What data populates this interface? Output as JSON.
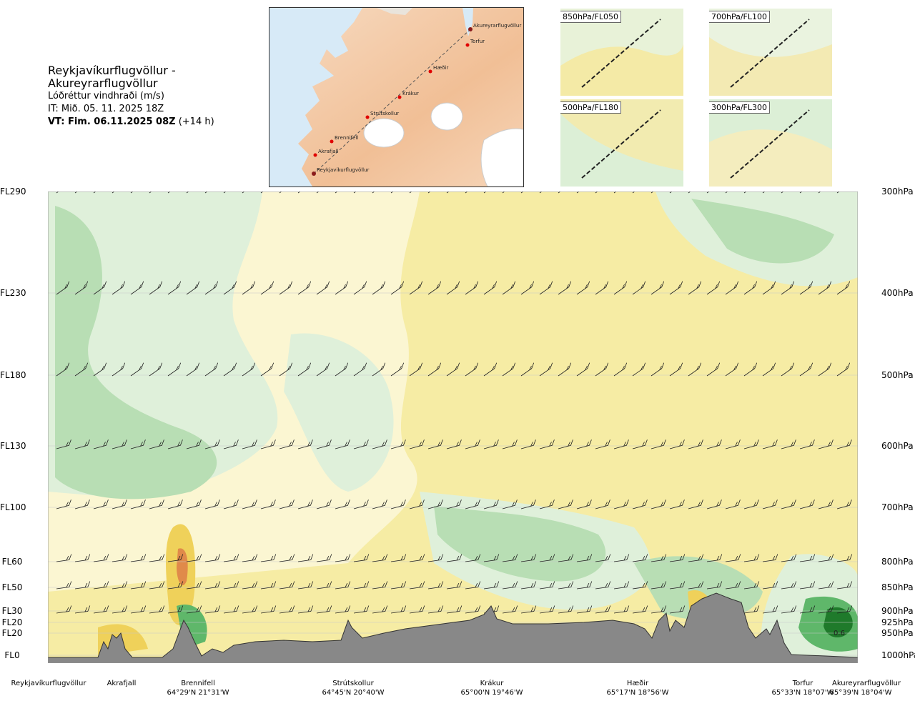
{
  "header": {
    "title": "Reykjavíkurflugvöllur - Akureyrarflugvöllur",
    "subtitle": "Lóðréttur vindhraði (m/s)",
    "issue_time": "IT: Mið. 05. 11. 2025 18Z",
    "valid_time_prefix": "VT: Fim. 06.11.2025 08Z",
    "valid_time_suffix": "(+14 h)"
  },
  "map": {
    "points": [
      {
        "label": "Akureyrarflugvöllur"
      },
      {
        "label": "Torfur"
      },
      {
        "label": "Hæðir"
      },
      {
        "label": "Krákur"
      },
      {
        "label": "Strútskollur"
      },
      {
        "label": "Brennifell"
      },
      {
        "label": "Akrafjall"
      },
      {
        "label": "Reykjavíkurflugvöllur"
      }
    ],
    "colors": {
      "land": "#f3c9a4",
      "sea": "#d9ecf8",
      "glacier": "#ffffff",
      "route": "#555555",
      "point": "#e00000"
    }
  },
  "thumbnails": [
    {
      "label": "850hPa/FL050"
    },
    {
      "label": "700hPa/FL100"
    },
    {
      "label": "500hPa/FL180"
    },
    {
      "label": "300hPa/FL300"
    }
  ],
  "chart_data": {
    "type": "heatmap",
    "title": "Reykjavíkurflugvöllur - Akureyrarflugvöllur",
    "variable": "Lóðréttur vindhraði (m/s)",
    "left_axis_ticks": [
      {
        "label": "FL290",
        "hpa": 300
      },
      {
        "label": "FL230",
        "hpa": 400
      },
      {
        "label": "FL180",
        "hpa": 500
      },
      {
        "label": "FL130",
        "hpa": 600
      },
      {
        "label": "FL100",
        "hpa": 700
      },
      {
        "label": "FL60",
        "hpa": 800
      },
      {
        "label": "FL50",
        "hpa": 850
      },
      {
        "label": "FL30",
        "hpa": 900
      },
      {
        "label": "FL20",
        "hpa": 925
      },
      {
        "label": "FL20",
        "hpa": 950
      },
      {
        "label": "FL0",
        "hpa": 1000
      }
    ],
    "right_axis_ticks": [
      "300hPa",
      "400hPa",
      "500hPa",
      "600hPa",
      "700hPa",
      "800hPa",
      "850hPa",
      "900hPa",
      "925hPa",
      "950hPa",
      "1000hPa"
    ],
    "annotation": "0.6",
    "colors": {
      "up_weak": "#dff0da",
      "up_mid": "#b8deb4",
      "up_strong": "#5fb76a",
      "up_max": "#1f7a2b",
      "down_weak": "#fbf6d2",
      "down_mid": "#f6eaa6",
      "down_strong": "#efd15a",
      "down_max": "#e08a4a",
      "terrain": "#888888"
    },
    "stations": [
      {
        "name": "Reykjavíkurflugvöllur",
        "coord": ""
      },
      {
        "name": "Akrafjall",
        "coord": ""
      },
      {
        "name": "Brennifell",
        "coord": "64°29'N 21°31'W"
      },
      {
        "name": "Strútskollur",
        "coord": "64°45'N 20°40'W"
      },
      {
        "name": "Krákur",
        "coord": "65°00'N 19°46'W"
      },
      {
        "name": "Hæðir",
        "coord": "65°17'N 18°56'W"
      },
      {
        "name": "Torfur",
        "coord": "65°33'N 18°07'W"
      },
      {
        "name": "Akureyrarflugvöllur",
        "coord": "65°39'N 18°04'W"
      }
    ]
  }
}
